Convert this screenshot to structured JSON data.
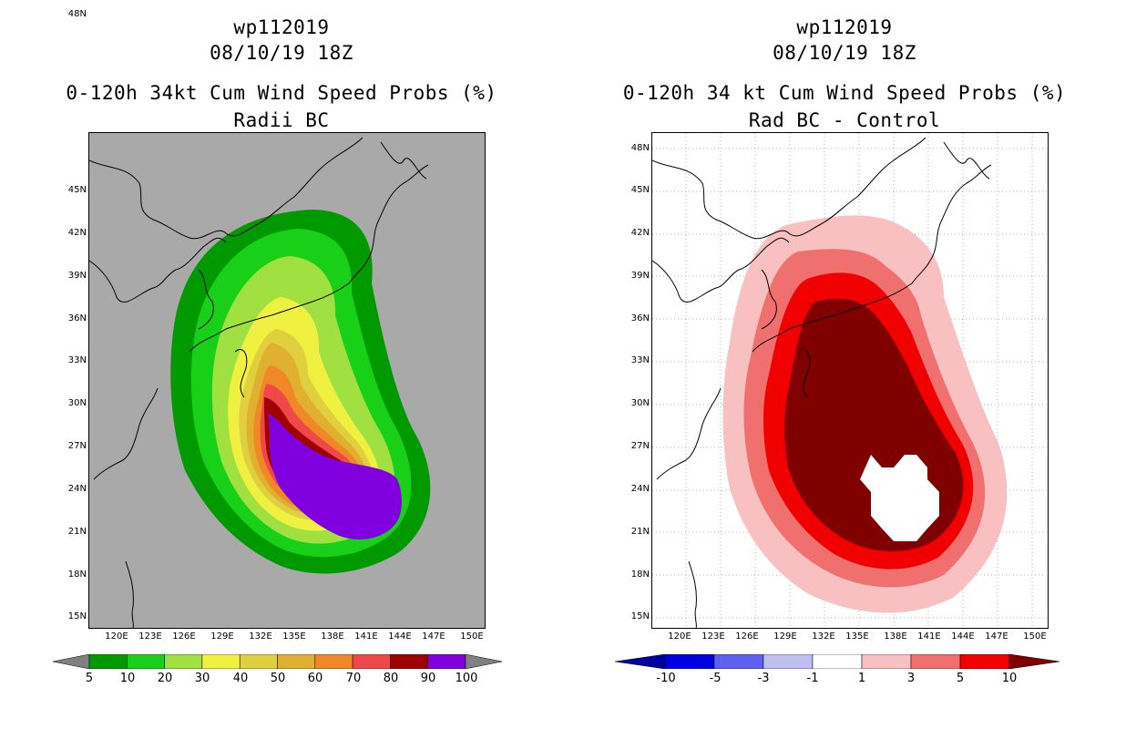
{
  "panels": [
    {
      "id": "left",
      "storm_id": "wp112019",
      "datetime": "08/10/19 18Z",
      "title": "0-120h 34kt Cum Wind Speed Probs (%)",
      "subtitle": "Radii BC",
      "background": "#a9a9a9",
      "y_labels": [
        "48N",
        "45N",
        "42N",
        "39N",
        "36N",
        "33N",
        "30N",
        "27N",
        "24N",
        "21N",
        "18N",
        "15N"
      ],
      "x_labels": [
        "120E",
        "123E",
        "126E",
        "129E",
        "132E",
        "135E",
        "138E",
        "141E",
        "144E",
        "147E",
        "150E"
      ],
      "colorbar": {
        "labels": [
          "5",
          "10",
          "20",
          "30",
          "40",
          "50",
          "60",
          "70",
          "80",
          "90",
          "100"
        ],
        "colors": [
          "#009a00",
          "#18d018",
          "#a0e040",
          "#f0f040",
          "#e0d040",
          "#e0b030",
          "#f08828",
          "#f04848",
          "#a00000",
          "#8000e0"
        ],
        "low_arrow": "#808080",
        "high_arrow": "#808080"
      }
    },
    {
      "id": "right",
      "storm_id": "wp112019",
      "datetime": "08/10/19 18Z",
      "title": "0-120h 34 kt Cum Wind Speed Probs (%)",
      "subtitle": "Rad BC - Control",
      "background": "#ffffff",
      "y_labels": [
        "48N",
        "45N",
        "42N",
        "39N",
        "36N",
        "33N",
        "30N",
        "27N",
        "24N",
        "21N",
        "18N",
        "15N"
      ],
      "x_labels": [
        "120E",
        "123E",
        "126E",
        "129E",
        "132E",
        "135E",
        "138E",
        "141E",
        "144E",
        "147E",
        "150E"
      ],
      "colorbar": {
        "labels": [
          "-10",
          "-5",
          "-3",
          "-1",
          "1",
          "3",
          "5",
          "10"
        ],
        "colors": [
          "#0000e0",
          "#6060f0",
          "#c0c0f0",
          "#ffffff",
          "#f8c0c0",
          "#f07070",
          "#f00000"
        ],
        "low_arrow": "#0000a0",
        "high_arrow": "#800000"
      }
    }
  ]
}
